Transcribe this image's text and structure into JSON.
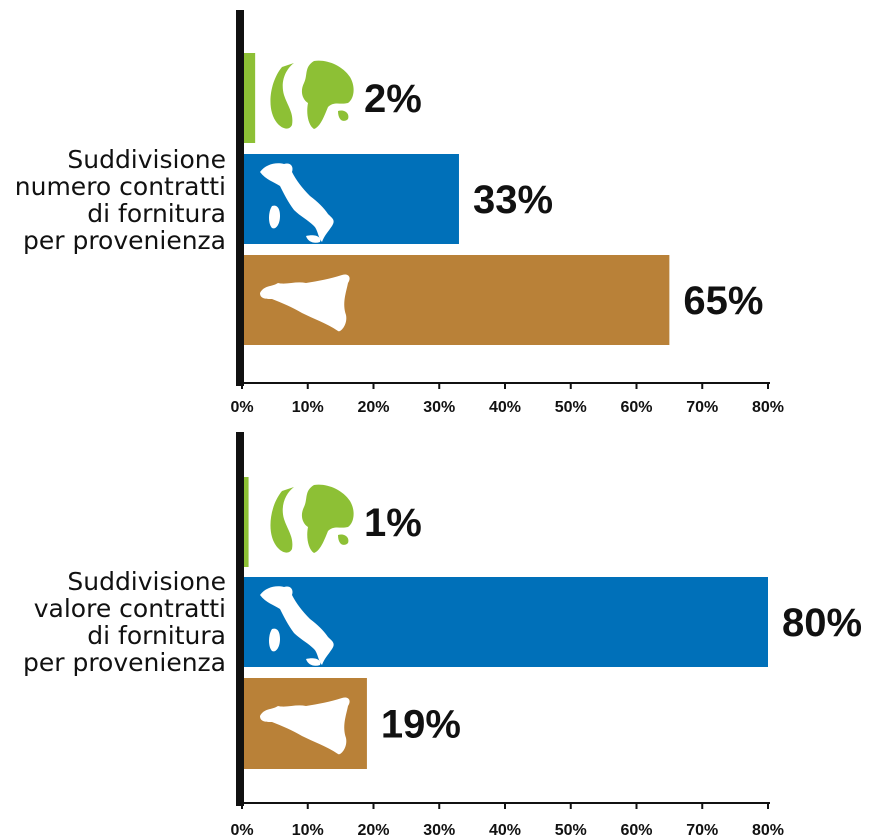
{
  "colors": {
    "world": "#8dc035",
    "italy": "#0070b9",
    "sicily": "#b98138",
    "axis": "#111111"
  },
  "icons": [
    "globe-icon",
    "italy-map-icon",
    "sicily-map-icon"
  ],
  "chart_data": [
    {
      "type": "bar",
      "orientation": "horizontal",
      "category_label": [
        "Suddivisione",
        "numero contratti",
        "di fornitura",
        "per provenienza"
      ],
      "series": [
        {
          "icon": "globe-icon",
          "color": "#8dc035",
          "value": 2,
          "label": "2%"
        },
        {
          "icon": "italy-map-icon",
          "color": "#0070b9",
          "value": 33,
          "label": "33%"
        },
        {
          "icon": "sicily-map-icon",
          "color": "#b98138",
          "value": 65,
          "label": "65%"
        }
      ],
      "ticks": [
        "0%",
        "10%",
        "20%",
        "30%",
        "40%",
        "50%",
        "60%",
        "70%",
        "80%"
      ],
      "xlim": [
        0,
        80
      ]
    },
    {
      "type": "bar",
      "orientation": "horizontal",
      "category_label": [
        "Suddivisione",
        "valore contratti",
        "di fornitura",
        "per provenienza"
      ],
      "series": [
        {
          "icon": "globe-icon",
          "color": "#8dc035",
          "value": 1,
          "label": "1%"
        },
        {
          "icon": "italy-map-icon",
          "color": "#0070b9",
          "value": 80,
          "label": "80%"
        },
        {
          "icon": "sicily-map-icon",
          "color": "#b98138",
          "value": 19,
          "label": "19%"
        }
      ],
      "ticks": [
        "0%",
        "10%",
        "20%",
        "30%",
        "40%",
        "50%",
        "60%",
        "70%",
        "80%"
      ],
      "xlim": [
        0,
        80
      ]
    }
  ]
}
